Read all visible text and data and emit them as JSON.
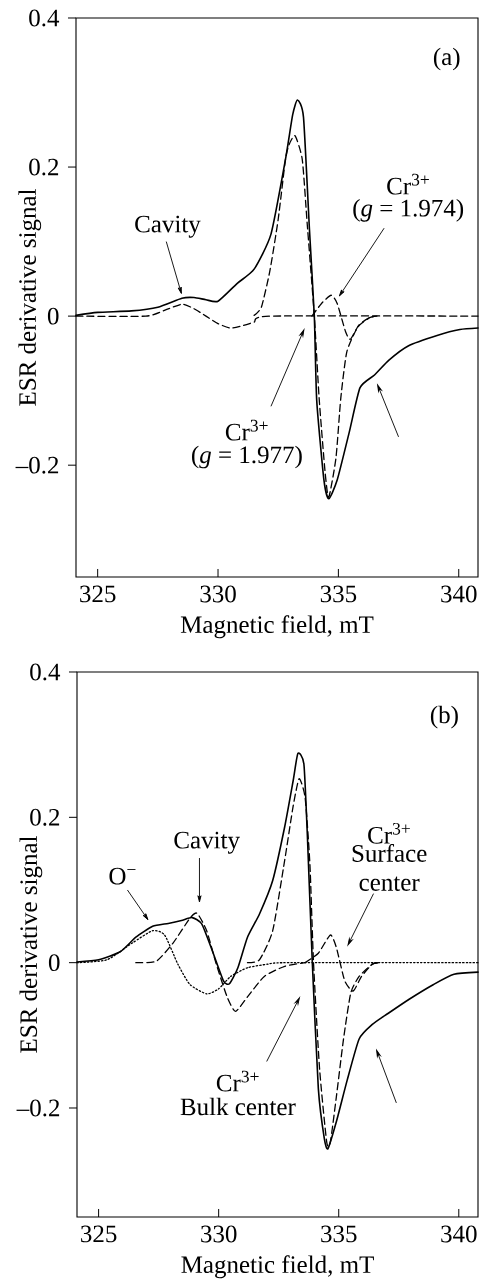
{
  "chart_data": [
    {
      "type": "line",
      "xlabel": "Magnetic field, mT",
      "ylabel": "ESR derivative signal",
      "xlim": [
        324.1,
        340.8
      ],
      "ylim": [
        -0.35,
        0.4
      ],
      "xticks": [
        325,
        330,
        335,
        340
      ],
      "yticks": [
        {
          "value": -0.2,
          "label": "–0.2"
        },
        0,
        0.2,
        0.4
      ],
      "series": [
        {
          "color": "#000000",
          "line_style": "solid",
          "x": [
            324.1,
            325,
            326.4,
            327.5,
            328.5,
            329.0,
            329.5,
            330,
            330.8,
            331.5,
            332.2,
            332.8,
            333.1,
            333.3,
            333.55,
            333.8,
            334.0,
            334.1,
            334.4,
            334.6,
            334.95,
            335.45,
            335.9,
            336.5,
            337.1,
            337.9,
            339.1,
            340.05,
            340.8
          ],
          "values": [
            0.001,
            0.005,
            0.007,
            0.012,
            0.024,
            0.025,
            0.022,
            0.02,
            0.044,
            0.063,
            0.11,
            0.21,
            0.27,
            0.29,
            0.267,
            0.115,
            0,
            -0.113,
            -0.22,
            -0.245,
            -0.22,
            -0.156,
            -0.096,
            -0.079,
            -0.059,
            -0.04,
            -0.026,
            -0.018,
            -0.016
          ]
        },
        {
          "color": "#000000",
          "line_style": "dashed",
          "x": [
            324.1,
            327,
            327.8,
            328.5,
            329.0,
            329.5,
            330.0,
            330.5,
            331.0,
            331.5,
            332.2,
            340.8
          ],
          "values": [
            0,
            0,
            0.008,
            0.016,
            0.01,
            0,
            -0.01,
            -0.016,
            -0.013,
            -0.008,
            0,
            0
          ]
        },
        {
          "color": "#000000",
          "line_style": "dashed",
          "x": [
            331.5,
            331.8,
            332.15,
            332.5,
            332.8,
            332.95,
            333.2,
            333.5,
            333.7,
            334.0,
            334.2,
            334.45,
            334.6,
            334.9,
            335.1,
            335.35,
            335.8,
            336.3,
            336.6
          ],
          "values": [
            0.001,
            0.012,
            0.06,
            0.13,
            0.21,
            0.23,
            0.242,
            0.21,
            0.126,
            0,
            -0.11,
            -0.21,
            -0.243,
            -0.19,
            -0.11,
            -0.048,
            -0.015,
            -0.002,
            0
          ]
        },
        {
          "color": "#000000",
          "line_style": "dashed",
          "x": [
            333.9,
            334.3,
            334.7,
            334.95,
            335.3,
            335.5,
            335.85,
            336.3,
            336.6
          ],
          "values": [
            0,
            0.017,
            0.028,
            0.017,
            -0.021,
            -0.031,
            -0.012,
            -0.002,
            0
          ]
        }
      ],
      "annotations": [
        "(a)",
        "Cavity",
        "Cr$^{3+}$",
        "(*g* = 1.974)",
        "Cr$^{3+}$",
        "(*g* = 1.977)"
      ]
    },
    {
      "type": "line",
      "xlabel": "Magnetic field, mT",
      "ylabel": "ESR derivative signal",
      "xlim": [
        324.1,
        340.8
      ],
      "ylim": [
        -0.35,
        0.4
      ],
      "xticks": [
        325,
        330,
        335,
        340
      ],
      "yticks": [
        {
          "value": -0.2,
          "label": "–0.2"
        },
        0,
        0.2,
        0.4
      ],
      "series": [
        {
          "color": "#000000",
          "line_style": "solid",
          "x": [
            324.1,
            325,
            325.9,
            326.55,
            327.25,
            327.9,
            328.45,
            328.9,
            329.3,
            329.75,
            330.2,
            330.45,
            330.8,
            331.2,
            331.7,
            332.25,
            332.75,
            333.1,
            333.3,
            333.55,
            333.7,
            333.9,
            334.15,
            334.4,
            334.55,
            334.9,
            335.35,
            335.85,
            336.4,
            337.05,
            337.95,
            338.95,
            339.8,
            340.8
          ],
          "values": [
            0.001,
            0.004,
            0.015,
            0.035,
            0.05,
            0.054,
            0.058,
            0.062,
            0.053,
            0.015,
            -0.025,
            -0.029,
            -0.007,
            0.035,
            0.067,
            0.113,
            0.187,
            0.25,
            0.288,
            0.273,
            0.17,
            0,
            -0.173,
            -0.242,
            -0.256,
            -0.219,
            -0.162,
            -0.105,
            -0.085,
            -0.07,
            -0.05,
            -0.03,
            -0.016,
            -0.013
          ]
        },
        {
          "color": "#000000",
          "line_style": "dotted",
          "x": [
            324.1,
            325.35,
            326.4,
            327.25,
            327.75,
            328.3,
            328.8,
            329.5,
            330,
            330.5,
            331.2,
            332.05,
            332.9,
            340.8
          ],
          "values": [
            0,
            0.004,
            0.027,
            0.044,
            0.038,
            -0.002,
            -0.03,
            -0.043,
            -0.036,
            -0.019,
            -0.007,
            -0.002,
            0,
            0
          ]
        },
        {
          "color": "#000000",
          "line_style": "dashed",
          "x": [
            326.55,
            327.4,
            328.1,
            328.8,
            329.1,
            329.5,
            329.9,
            330.35,
            330.7,
            331.2,
            331.9,
            332.75,
            333.6
          ],
          "values": [
            0,
            0.002,
            0.027,
            0.061,
            0.068,
            0.044,
            -0.002,
            -0.047,
            -0.067,
            -0.047,
            -0.019,
            -0.005,
            0
          ]
        },
        {
          "color": "#000000",
          "line_style": "dashed",
          "x": [
            331.2,
            331.7,
            332.25,
            332.75,
            333.1,
            333.35,
            333.6,
            333.8,
            333.95,
            334.2,
            334.5,
            334.65,
            334.9,
            335.2,
            335.5,
            335.85,
            336.4,
            336.7
          ],
          "values": [
            0,
            0.004,
            0.044,
            0.141,
            0.215,
            0.253,
            0.227,
            0.135,
            0,
            -0.145,
            -0.247,
            -0.247,
            -0.185,
            -0.105,
            -0.042,
            -0.019,
            -0.002,
            0
          ]
        },
        {
          "color": "#000000",
          "line_style": "dashed",
          "x": [
            333.6,
            334.15,
            334.65,
            334.9,
            335.25,
            335.6,
            335.95,
            336.4,
            336.7
          ],
          "values": [
            0,
            0.013,
            0.038,
            0.021,
            -0.025,
            -0.039,
            -0.019,
            -0.002,
            0
          ]
        }
      ],
      "annotations": [
        "(b)",
        "O$^{−}$",
        "Cavity",
        "Cr$^{3+}$",
        "Surface center",
        "Cr$^{3+}$",
        "Bulk center"
      ]
    }
  ]
}
